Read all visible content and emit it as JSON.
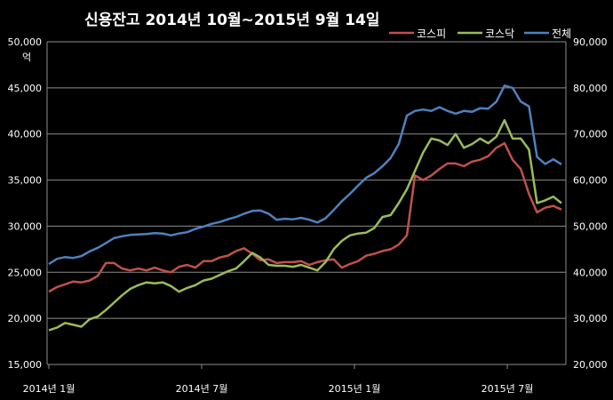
{
  "chart_data": {
    "type": "line",
    "title": "신용잔고 2014년 10월~2015년 9월 14일",
    "y_unit": "억",
    "y_left": {
      "lim": [
        15000,
        50000
      ],
      "ticks": [
        "15,000",
        "20,000",
        "25,000",
        "30,000",
        "35,000",
        "40,000",
        "45,000",
        "50,000"
      ]
    },
    "y_right": {
      "lim": [
        20000,
        90000
      ],
      "ticks": [
        "20,000",
        "30,000",
        "40,000",
        "50,000",
        "60,000",
        "70,000",
        "80,000",
        "90,000"
      ]
    },
    "x_ticks": [
      "2014년 1월",
      "2014년 7월",
      "2015년 1월",
      "2015년 7월"
    ],
    "grid": true,
    "legend_position": "top-right",
    "series": [
      {
        "name": "코스피",
        "axis": "left",
        "color": "#c0504d",
        "values": [
          22900,
          23400,
          23700,
          24000,
          23900,
          24100,
          24600,
          26000,
          26000,
          25400,
          25200,
          25400,
          25200,
          25500,
          25200,
          25000,
          25600,
          25800,
          25500,
          26200,
          26200,
          26600,
          26800,
          27300,
          27600,
          27000,
          26300,
          26400,
          26000,
          26100,
          26100,
          26200,
          25800,
          26100,
          26300,
          26400,
          25500,
          25900,
          26200,
          26800,
          27000,
          27300,
          27500,
          28000,
          29000,
          35500,
          35000,
          35500,
          36200,
          36800,
          36800,
          36500,
          37000,
          37200,
          37600,
          38500,
          39000,
          37200,
          36200,
          33500,
          31500,
          32000,
          32200,
          31800
        ]
      },
      {
        "name": "코스닥",
        "axis": "left",
        "color": "#9bbb59",
        "values": [
          18700,
          19000,
          19500,
          19300,
          19100,
          19900,
          20200,
          20900,
          21700,
          22500,
          23200,
          23600,
          23900,
          23800,
          23900,
          23500,
          22900,
          23300,
          23600,
          24100,
          24300,
          24700,
          25100,
          25400,
          26200,
          27100,
          26600,
          25800,
          25700,
          25700,
          25600,
          25800,
          25500,
          25200,
          26100,
          27500,
          28400,
          29000,
          29200,
          29300,
          29800,
          31000,
          31200,
          32500,
          34000,
          36000,
          38000,
          39500,
          39300,
          38800,
          40000,
          38500,
          38900,
          39500,
          39000,
          39700,
          41500,
          39500,
          39500,
          38300,
          32500,
          32800,
          33200,
          32500
        ]
      },
      {
        "name": "전체",
        "axis": "right",
        "color": "#4f81bd",
        "values": [
          41800,
          42900,
          43300,
          43100,
          43500,
          44500,
          45300,
          46300,
          47400,
          47800,
          48100,
          48200,
          48300,
          48500,
          48400,
          48000,
          48400,
          48700,
          49400,
          49900,
          50500,
          50900,
          51500,
          52000,
          52700,
          53300,
          53400,
          52700,
          51400,
          51600,
          51500,
          51800,
          51400,
          50800,
          51700,
          53500,
          55400,
          57000,
          58800,
          60500,
          61500,
          63000,
          64800,
          67800,
          74000,
          75000,
          75300,
          75000,
          75800,
          75000,
          74400,
          75000,
          74800,
          75600,
          75500,
          77000,
          80500,
          80000,
          77000,
          76000,
          65000,
          63500,
          64500,
          63400
        ]
      }
    ]
  }
}
